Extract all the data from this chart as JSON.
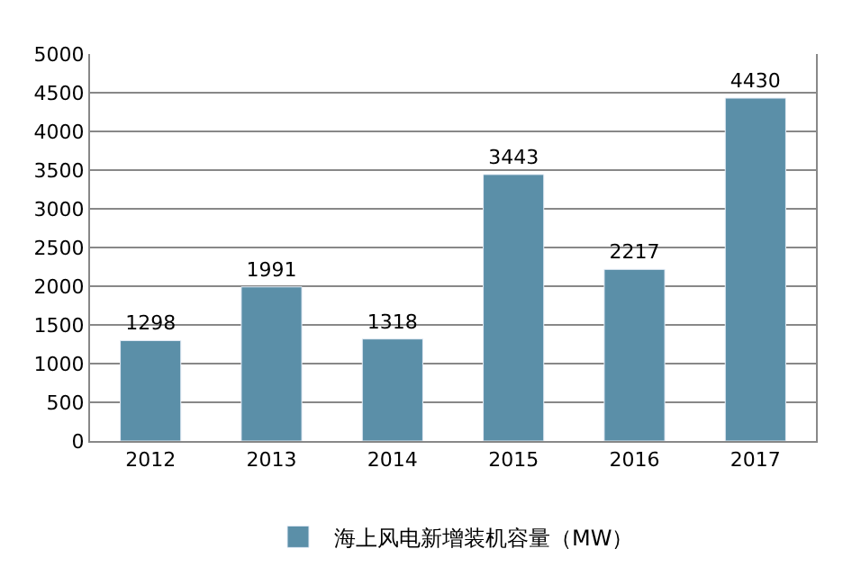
{
  "chart_data": {
    "type": "bar",
    "categories": [
      "2012",
      "2013",
      "2014",
      "2015",
      "2016",
      "2017"
    ],
    "series": [
      {
        "name": "海上风电新增装机容量（MW）",
        "color": "#5b8fa8",
        "values": [
          1298,
          1991,
          1318,
          3443,
          2217,
          4430
        ]
      }
    ],
    "ylim": [
      0,
      5000
    ],
    "yticks": [
      0,
      500,
      1000,
      1500,
      2000,
      2500,
      3000,
      3500,
      4000,
      4500,
      5000
    ],
    "grid": "y",
    "legend": "bottom",
    "data_labels": true
  }
}
